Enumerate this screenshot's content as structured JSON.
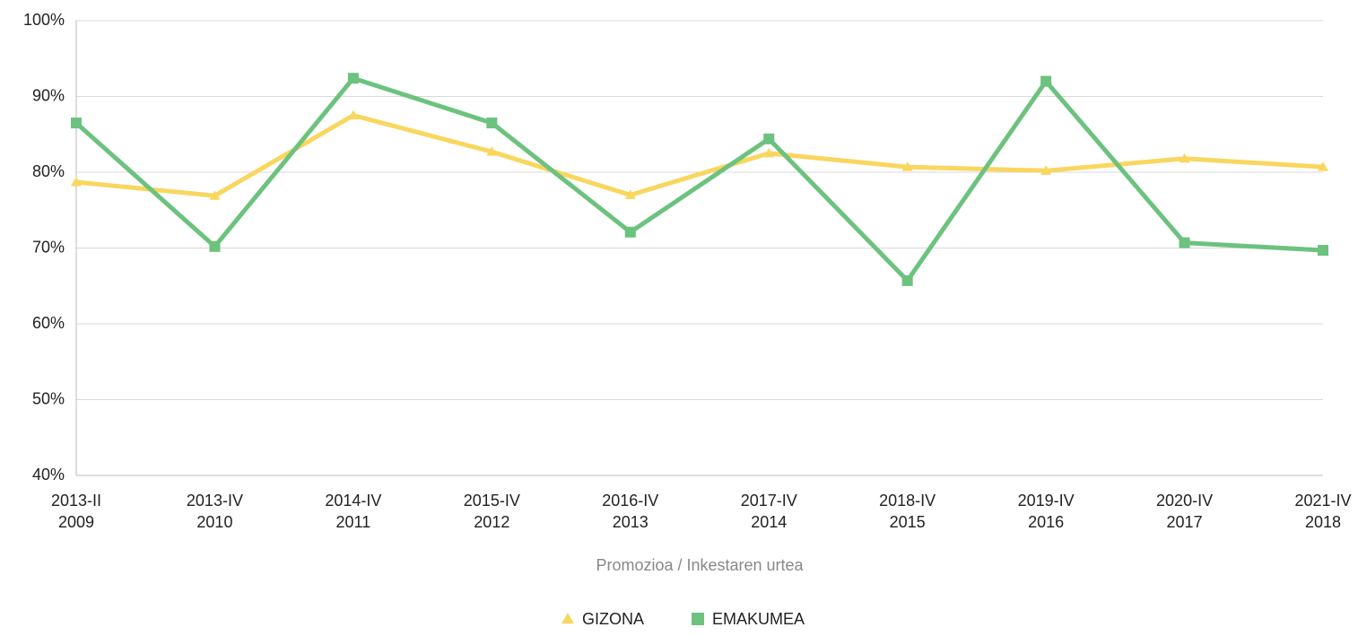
{
  "chart_data": {
    "type": "line",
    "x_label": "Promozioa / Inkestaren urtea",
    "categories": [
      [
        "2013-II",
        "2009"
      ],
      [
        "2013-IV",
        "2010"
      ],
      [
        "2014-IV",
        "2011"
      ],
      [
        "2015-IV",
        "2012"
      ],
      [
        "2016-IV",
        "2013"
      ],
      [
        "2017-IV",
        "2014"
      ],
      [
        "2018-IV",
        "2015"
      ],
      [
        "2019-IV",
        "2016"
      ],
      [
        "2020-IV",
        "2017"
      ],
      [
        "2021-IV",
        "2018"
      ]
    ],
    "series": [
      {
        "name": "GIZONA",
        "color": "#f9d65e",
        "marker": "triangle",
        "values": [
          78.7,
          76.9,
          87.5,
          82.7,
          77.0,
          82.5,
          80.7,
          80.2,
          81.8,
          80.7
        ]
      },
      {
        "name": "EMAKUMEA",
        "color": "#6cc27e",
        "marker": "square",
        "values": [
          86.5,
          70.2,
          92.4,
          86.5,
          72.1,
          84.4,
          65.7,
          92.0,
          70.7,
          69.7
        ]
      }
    ],
    "ylim": [
      40,
      100
    ],
    "yticks": [
      {
        "value": 40,
        "label": "40%"
      },
      {
        "value": 50,
        "label": "50%"
      },
      {
        "value": 60,
        "label": "60%"
      },
      {
        "value": 70,
        "label": "70%"
      },
      {
        "value": 80,
        "label": "80%"
      },
      {
        "value": 90,
        "label": "90%"
      },
      {
        "value": 100,
        "label": "100%"
      }
    ],
    "grid": true,
    "legend": "bottom"
  }
}
